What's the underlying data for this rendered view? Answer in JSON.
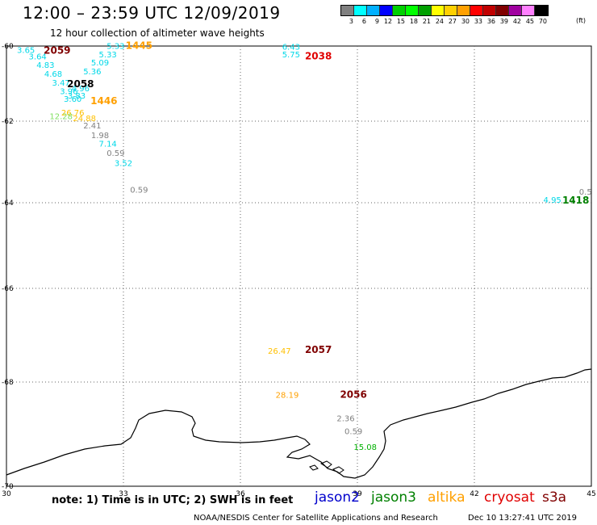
{
  "header": {
    "title": "12:00 – 23:59 UTC 12/09/2019",
    "subtitle": "12 hour collection of altimeter wave heights"
  },
  "legend": {
    "colors": [
      "#808080",
      "#00ffff",
      "#00b0ff",
      "#0000ff",
      "#00d000",
      "#00ff00",
      "#00a000",
      "#ffff00",
      "#ffd000",
      "#ffa000",
      "#ff0000",
      "#c00000",
      "#800000",
      "#a000a0",
      "#ff80ff",
      "#000000"
    ],
    "ticks": [
      "3",
      "6",
      "9",
      "12",
      "15",
      "18",
      "21",
      "24",
      "27",
      "30",
      "33",
      "36",
      "39",
      "42",
      "45",
      "70"
    ],
    "unit": "(ft)"
  },
  "map": {
    "x_labels": [
      "30",
      "33",
      "36",
      "39",
      "42",
      "45"
    ],
    "y_labels": [
      "-60",
      "-62",
      "-64",
      "-66",
      "-68",
      "-70"
    ],
    "observations": [
      {
        "lon": 32.8,
        "lat": -60.08,
        "text": "5.33",
        "color": "#00d8e8"
      },
      {
        "lon": 30.5,
        "lat": -60.18,
        "text": "3.65",
        "color": "#00d8e8"
      },
      {
        "lon": 32.6,
        "lat": -60.3,
        "text": "5.33",
        "color": "#00d8e8"
      },
      {
        "lon": 30.8,
        "lat": -60.35,
        "text": "3.64",
        "color": "#00d8e8"
      },
      {
        "lon": 32.4,
        "lat": -60.52,
        "text": "5.09",
        "color": "#00d8e8"
      },
      {
        "lon": 31.0,
        "lat": -60.58,
        "text": "4.83",
        "color": "#00d8e8"
      },
      {
        "lon": 32.2,
        "lat": -60.75,
        "text": "5.36",
        "color": "#00d8e8"
      },
      {
        "lon": 31.2,
        "lat": -60.82,
        "text": "4.68",
        "color": "#00d8e8"
      },
      {
        "lon": 31.4,
        "lat": -61.05,
        "text": "3.47",
        "color": "#00d8e8"
      },
      {
        "lon": 31.9,
        "lat": -61.2,
        "text": "4.96",
        "color": "#00d8e8"
      },
      {
        "lon": 31.6,
        "lat": -61.28,
        "text": "3.96",
        "color": "#00d8e8"
      },
      {
        "lon": 31.8,
        "lat": -61.4,
        "text": "3.83",
        "color": "#00d8e8"
      },
      {
        "lon": 31.7,
        "lat": -61.48,
        "text": "3.60",
        "color": "#00d8e8"
      },
      {
        "lon": 31.7,
        "lat": -61.85,
        "text": "26.76",
        "color": "#ffc000"
      },
      {
        "lon": 31.4,
        "lat": -61.95,
        "text": "12.28",
        "color": "#80e060"
      },
      {
        "lon": 32.0,
        "lat": -62.0,
        "text": "24.88",
        "color": "#ffc000"
      },
      {
        "lon": 32.2,
        "lat": -62.18,
        "text": "2.41",
        "color": "#808080"
      },
      {
        "lon": 32.4,
        "lat": -62.42,
        "text": "1.98",
        "color": "#808080"
      },
      {
        "lon": 32.6,
        "lat": -62.62,
        "text": "7.14",
        "color": "#00d8e8"
      },
      {
        "lon": 32.8,
        "lat": -62.85,
        "text": "0.59",
        "color": "#808080"
      },
      {
        "lon": 33.0,
        "lat": -63.1,
        "text": "3.52",
        "color": "#00d8e8"
      },
      {
        "lon": 33.4,
        "lat": -63.75,
        "text": "0.59",
        "color": "#808080"
      },
      {
        "lon": 37.3,
        "lat": -60.1,
        "text": "6.43",
        "color": "#00d8e8"
      },
      {
        "lon": 37.3,
        "lat": -60.3,
        "text": "5.75",
        "color": "#00d8e8"
      },
      {
        "lon": 44.0,
        "lat": -64.0,
        "text": "4.95",
        "color": "#00d8e8"
      },
      {
        "lon": 44.85,
        "lat": -63.8,
        "text": "0.5",
        "color": "#808080"
      },
      {
        "lon": 37.0,
        "lat": -67.4,
        "text": "26.47",
        "color": "#ffc000"
      },
      {
        "lon": 37.2,
        "lat": -68.3,
        "text": "28.19",
        "color": "#ffa000"
      },
      {
        "lon": 38.7,
        "lat": -68.75,
        "text": "2.36",
        "color": "#808080"
      },
      {
        "lon": 38.9,
        "lat": -69.0,
        "text": "0.59",
        "color": "#808080"
      },
      {
        "lon": 39.2,
        "lat": -69.3,
        "text": "15.08",
        "color": "#00b000"
      }
    ],
    "time_labels": [
      {
        "lon": 31.3,
        "lat": -60.2,
        "text": "2059",
        "color": "#800000"
      },
      {
        "lon": 33.4,
        "lat": -60.08,
        "text": "1445",
        "color": "#ffa000"
      },
      {
        "lon": 31.9,
        "lat": -61.1,
        "text": "2058",
        "color": "#000000"
      },
      {
        "lon": 32.5,
        "lat": -61.55,
        "text": "1446",
        "color": "#ffa000"
      },
      {
        "lon": 38.0,
        "lat": -60.35,
        "text": "2038",
        "color": "#e00000"
      },
      {
        "lon": 44.6,
        "lat": -64.02,
        "text": "1418",
        "color": "#008000"
      },
      {
        "lon": 38.0,
        "lat": -67.38,
        "text": "2057",
        "color": "#800000"
      },
      {
        "lon": 38.9,
        "lat": -68.3,
        "text": "2056",
        "color": "#800000"
      }
    ]
  },
  "footer": {
    "note": "note: 1) Time is in UTC; 2) SWH is in feet",
    "satellites": [
      {
        "name": "jason2",
        "color": "#0000cc"
      },
      {
        "name": "jason3",
        "color": "#008000"
      },
      {
        "name": "altika",
        "color": "#ffa000"
      },
      {
        "name": "cryosat",
        "color": "#e00000"
      },
      {
        "name": "s3a",
        "color": "#800000"
      }
    ],
    "credit": "NOAA/NESDIS Center for Satellite Applications and Research",
    "timestamp": "Dec 10 13:27:41 UTC 2019"
  }
}
